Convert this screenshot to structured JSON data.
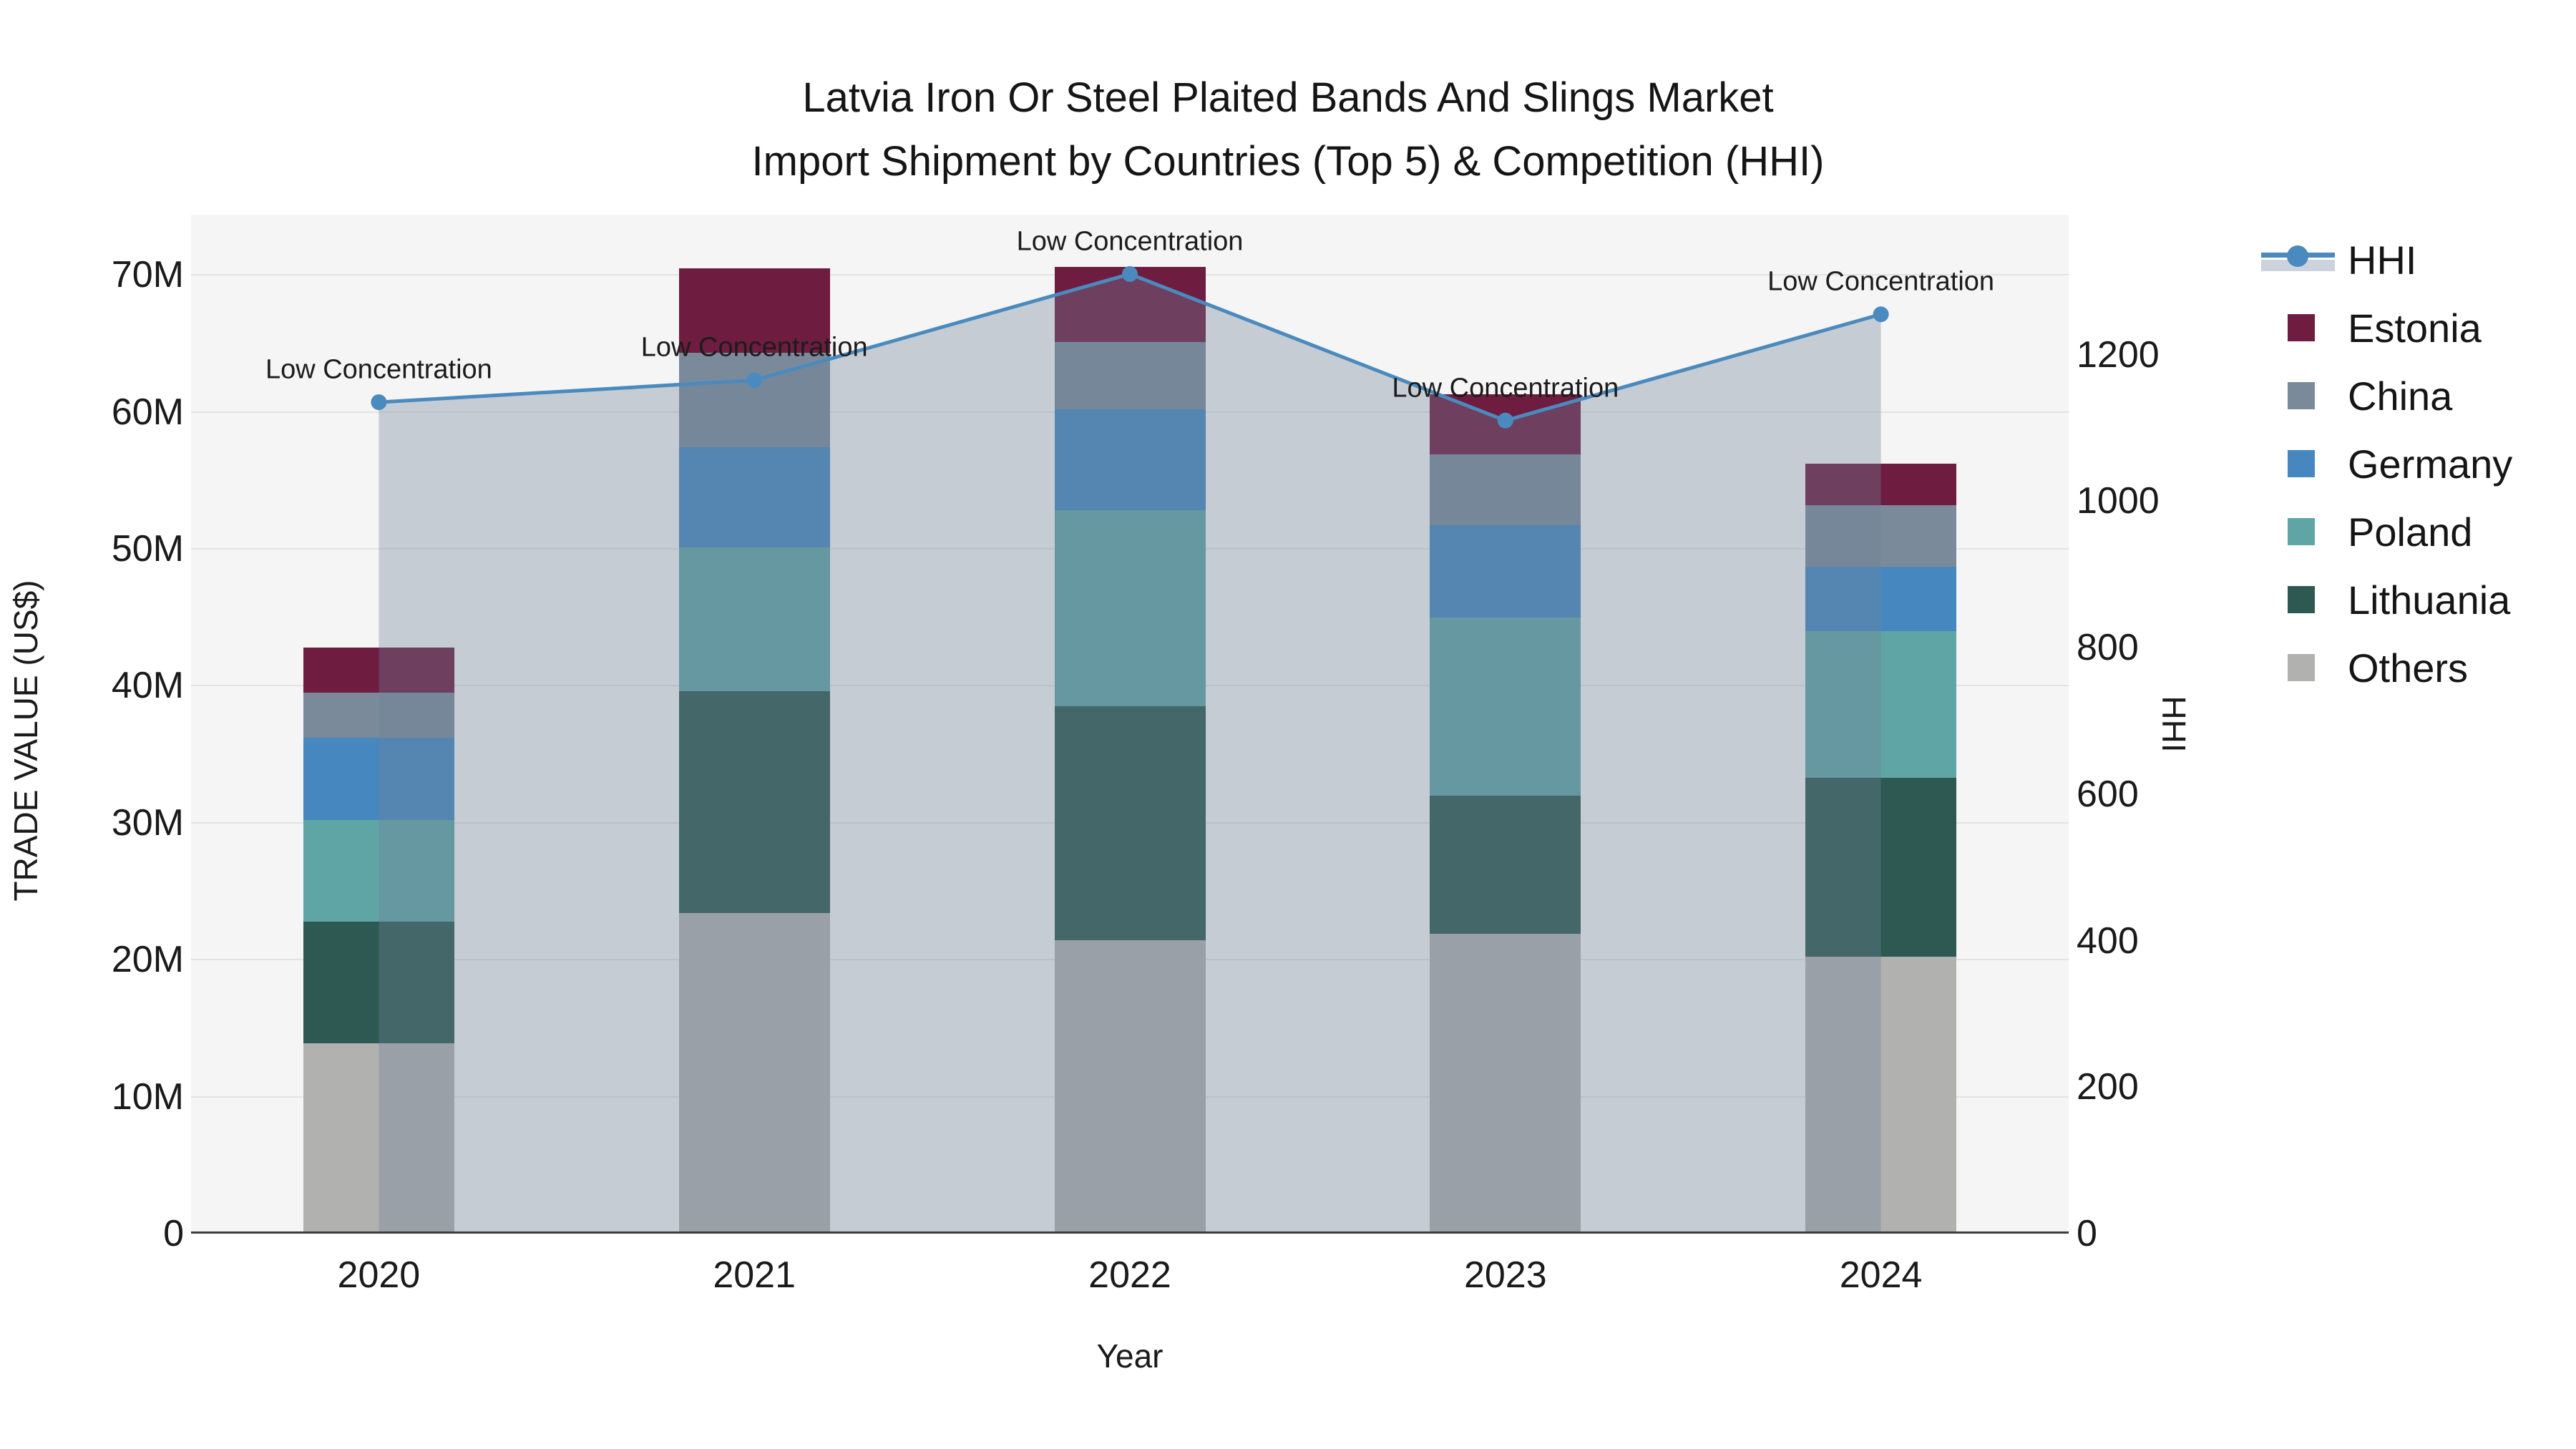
{
  "title": {
    "line1": "Latvia Iron Or Steel Plaited Bands And Slings Market",
    "line2": "Import Shipment by Countries (Top 5) & Competition (HHI)"
  },
  "chart_data": {
    "type": "bar+line",
    "subtype": "stacked-bar-with-secondary-axis-line-and-area-fill",
    "categories": [
      "2020",
      "2021",
      "2022",
      "2023",
      "2024"
    ],
    "series": [
      {
        "name": "Estonia",
        "color": "#6E1C3F",
        "values": [
          3.3,
          6.2,
          5.5,
          4.4,
          3.0
        ]
      },
      {
        "name": "China",
        "color": "#7B8A9B",
        "values": [
          3.3,
          6.9,
          4.9,
          5.2,
          4.5
        ]
      },
      {
        "name": "Germany",
        "color": "#4787BF",
        "values": [
          6.0,
          7.3,
          7.4,
          6.7,
          4.7
        ]
      },
      {
        "name": "Poland",
        "color": "#60A5A6",
        "values": [
          7.4,
          10.5,
          14.3,
          13.0,
          10.7
        ]
      },
      {
        "name": "Lithuania",
        "color": "#2D5952",
        "values": [
          8.9,
          16.2,
          17.1,
          10.1,
          13.1
        ]
      },
      {
        "name": "Others",
        "color": "#B1B1B0",
        "values": [
          13.9,
          23.4,
          21.4,
          21.9,
          20.2
        ]
      }
    ],
    "stack_order_bottom_to_top": [
      "Others",
      "Lithuania",
      "Poland",
      "Germany",
      "China",
      "Estonia"
    ],
    "bar_totals": [
      42.8,
      70.5,
      70.6,
      61.3,
      56.2
    ],
    "line": {
      "name": "HHI",
      "color": "#4A8ABE",
      "area_fill_color": "rgba(113,128,151,0.35)",
      "values": [
        1135,
        1165,
        1310,
        1110,
        1255
      ]
    },
    "annotation_text": "Low Concentration",
    "annotations_per_point": [
      "Low Concentration",
      "Low Concentration",
      "Low Concentration",
      "Low Concentration",
      "Low Concentration"
    ],
    "xlabel": "Year",
    "ylabel_left": "TRADE VALUE (US$)",
    "ylabel_right": "HHI",
    "yticks_left": [
      {
        "label": "0",
        "value": 0
      },
      {
        "label": "10M",
        "value": 10
      },
      {
        "label": "20M",
        "value": 20
      },
      {
        "label": "30M",
        "value": 30
      },
      {
        "label": "40M",
        "value": 40
      },
      {
        "label": "50M",
        "value": 50
      },
      {
        "label": "60M",
        "value": 60
      },
      {
        "label": "70M",
        "value": 70
      }
    ],
    "yticks_right": [
      {
        "label": "0",
        "value": 0
      },
      {
        "label": "200",
        "value": 200
      },
      {
        "label": "400",
        "value": 400
      },
      {
        "label": "600",
        "value": 600
      },
      {
        "label": "800",
        "value": 800
      },
      {
        "label": "1000",
        "value": 1000
      },
      {
        "label": "1200",
        "value": 1200
      }
    ],
    "ylim_left": [
      0,
      74.4
    ],
    "ylim_right": [
      0,
      1391
    ],
    "grid": true,
    "legend_position": "right",
    "legend_order": [
      "HHI",
      "Estonia",
      "China",
      "Germany",
      "Poland",
      "Lithuania",
      "Others"
    ],
    "plot_bg_color": "#f5f5f5",
    "gridline_color": "#e3e3e3",
    "axis_line_color": "#3c3c3c"
  }
}
